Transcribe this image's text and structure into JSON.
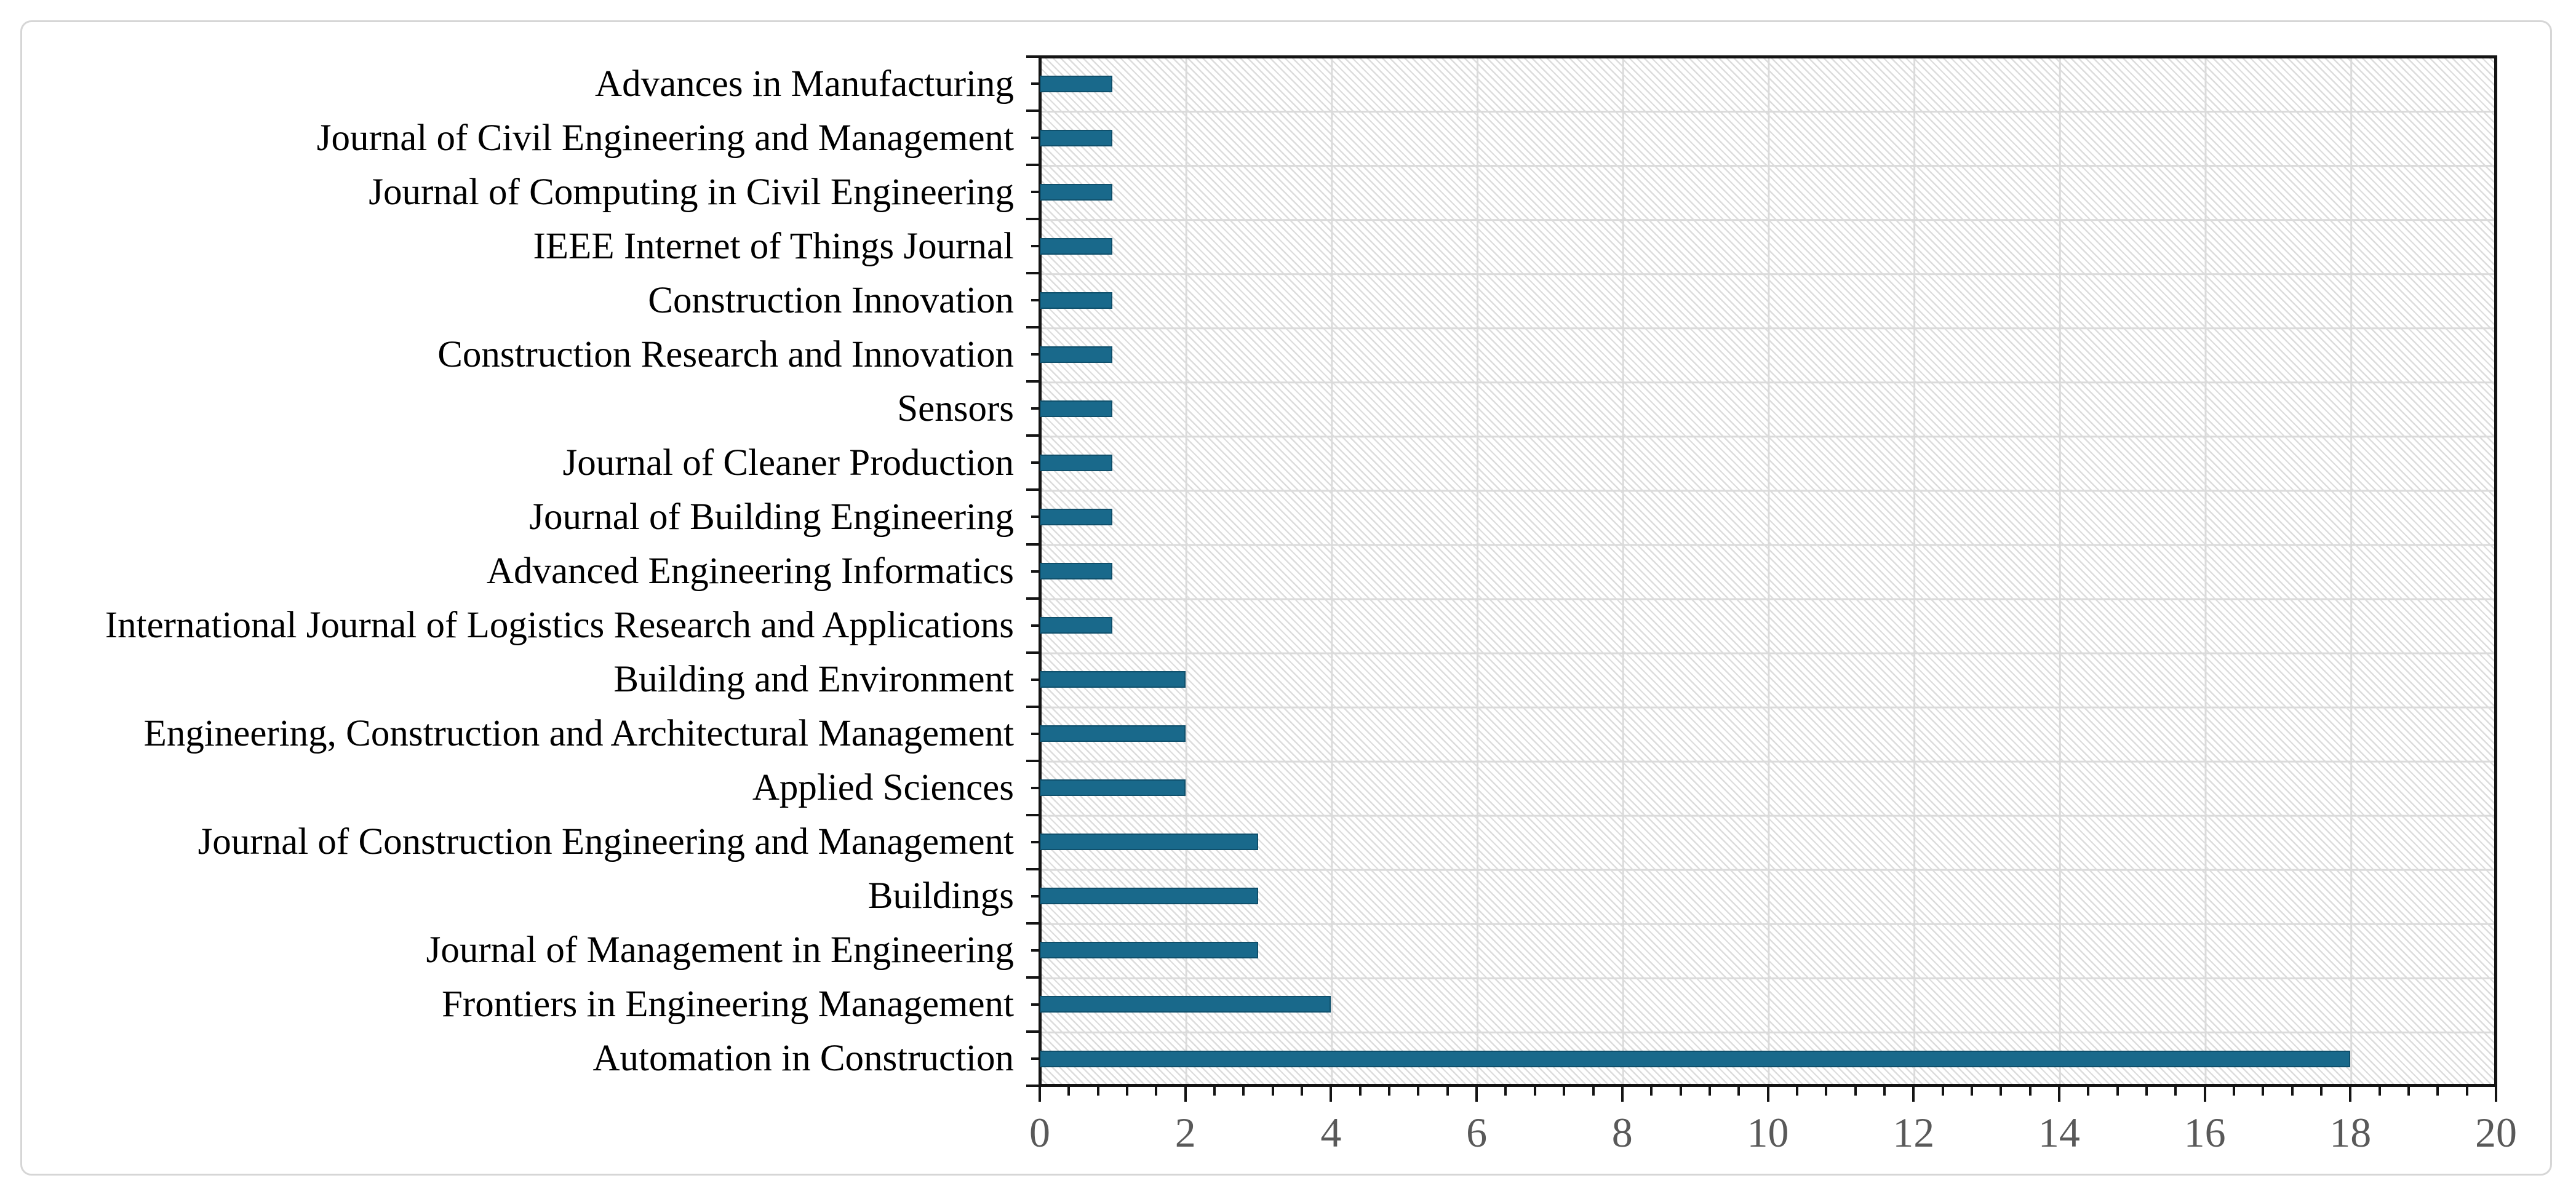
{
  "chart_data": {
    "type": "bar",
    "orientation": "horizontal",
    "title": "",
    "xlabel": "",
    "ylabel": "",
    "categories": [
      "Advances in Manufacturing",
      "Journal of Civil Engineering and Management",
      "Journal of Computing in Civil Engineering",
      "IEEE Internet of Things Journal",
      "Construction Innovation",
      "Construction Research and Innovation",
      "Sensors",
      "Journal of Cleaner Production",
      "Journal of Building Engineering",
      "Advanced Engineering Informatics",
      "International Journal of Logistics Research and Applications",
      "Building and Environment",
      "Engineering, Construction and Architectural Management",
      "Applied Sciences",
      "Journal of Construction Engineering and Management",
      "Buildings",
      "Journal of Management in Engineering",
      "Frontiers in Engineering Management",
      "Automation in Construction"
    ],
    "values": [
      1,
      1,
      1,
      1,
      1,
      1,
      1,
      1,
      1,
      1,
      1,
      2,
      2,
      2,
      3,
      3,
      3,
      4,
      18
    ],
    "xlim": [
      0,
      20
    ],
    "x_major_ticks": [
      0,
      2,
      4,
      6,
      8,
      10,
      12,
      14,
      16,
      18,
      20
    ],
    "x_minor_unit": 0.4,
    "grid": "major vertical gridlines and category-boundary horizontal gridlines",
    "plot_background": "light diagonal hatch pattern",
    "legend": "none"
  },
  "colors": {
    "bar": "#19698B",
    "bar_border": "#0F506C",
    "axis": "#141414",
    "gridline": "#DBDBDB",
    "hatch": "rgba(150,150,150,0.33)",
    "category_label_text": "#000000",
    "axis_tick_text": "#595959",
    "card_border": "#D6D6D6",
    "background": "#FFFFFF"
  }
}
